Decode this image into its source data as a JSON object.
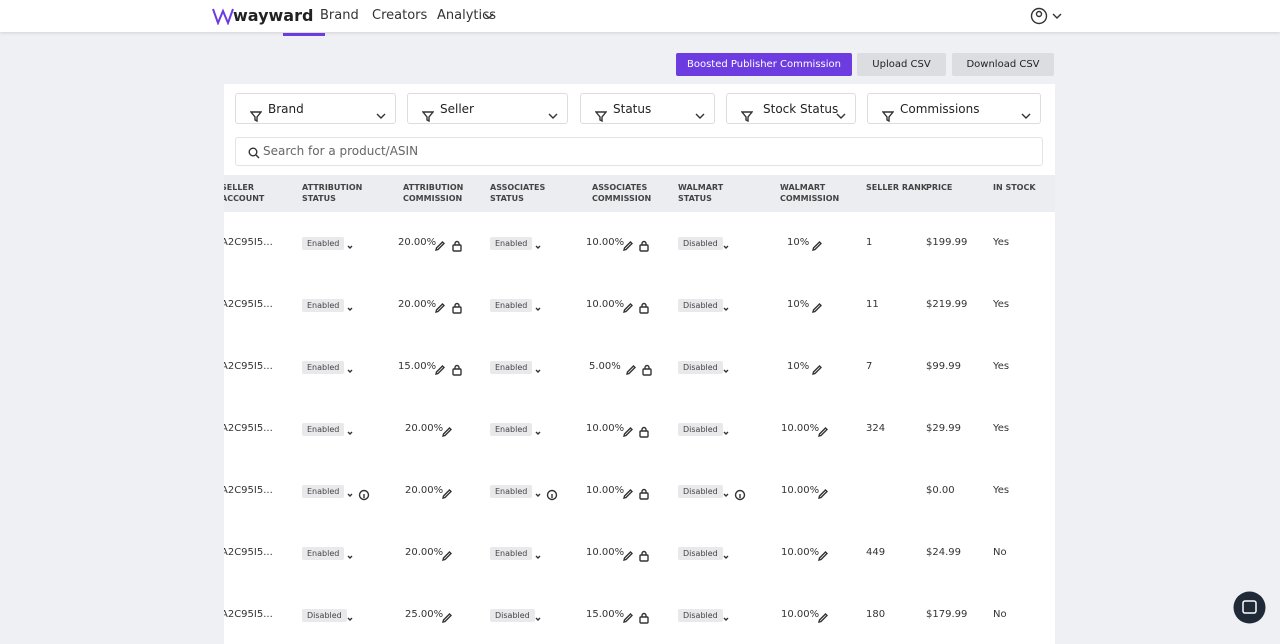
{
  "nav": {
    "brand": "wayward",
    "links": [
      "Brand",
      "Creators",
      "Analytics"
    ]
  },
  "actions": [
    "Boosted Publisher Commission",
    "Upload CSV",
    "Download CSV"
  ],
  "filters": [
    "Brand",
    "Seller",
    "Status",
    "Stock Status",
    "Commissions"
  ],
  "search_placeholder": "Search for a product/ASIN",
  "table": {
    "columns": [
      "SELLER ACCOUNT",
      "ATTRIBUTION STATUS",
      "ATTRIBUTION COMMISSION",
      "ASSOCIATES STATUS",
      "ASSOCIATES COMMISSION",
      "WALMART STATUS",
      "WALMART COMMISSION",
      "SELLER RANK",
      "PRICE",
      "IN STOCK"
    ],
    "rows": [
      [
        "A2C95I5...",
        "Enabled",
        "20.00%",
        "Enabled",
        "10.00%",
        "Disabled",
        "10%",
        "1",
        "$199.99",
        "Yes"
      ],
      [
        "A2C95I5...",
        "Enabled",
        "20.00%",
        "Enabled",
        "10.00%",
        "Disabled",
        "10%",
        "11",
        "$219.99",
        "Yes"
      ],
      [
        "A2C95I5...",
        "Enabled",
        "15.00%",
        "Enabled",
        "5.00%",
        "Disabled",
        "10%",
        "7",
        "$99.99",
        "Yes"
      ],
      [
        "A2C95I5...",
        "Enabled",
        "20.00%",
        "Enabled",
        "10.00%",
        "Disabled",
        "10.00%",
        "324",
        "$29.99",
        "Yes"
      ],
      [
        "A2C95I5...",
        "Enabled",
        "20.00%",
        "Enabled",
        "10.00%",
        "Disabled",
        "10.00%",
        null,
        "$0.00",
        "Yes"
      ],
      [
        "A2C95I5...",
        "Enabled",
        "20.00%",
        "Enabled",
        "10.00%",
        "Disabled",
        "10.00%",
        "449",
        "$24.99",
        "No"
      ],
      [
        "A2C95I5...",
        "Disabled",
        "25.00%",
        "Disabled",
        "15.00%",
        "Disabled",
        "10.00%",
        "180",
        "$179.99",
        "No"
      ]
    ]
  }
}
